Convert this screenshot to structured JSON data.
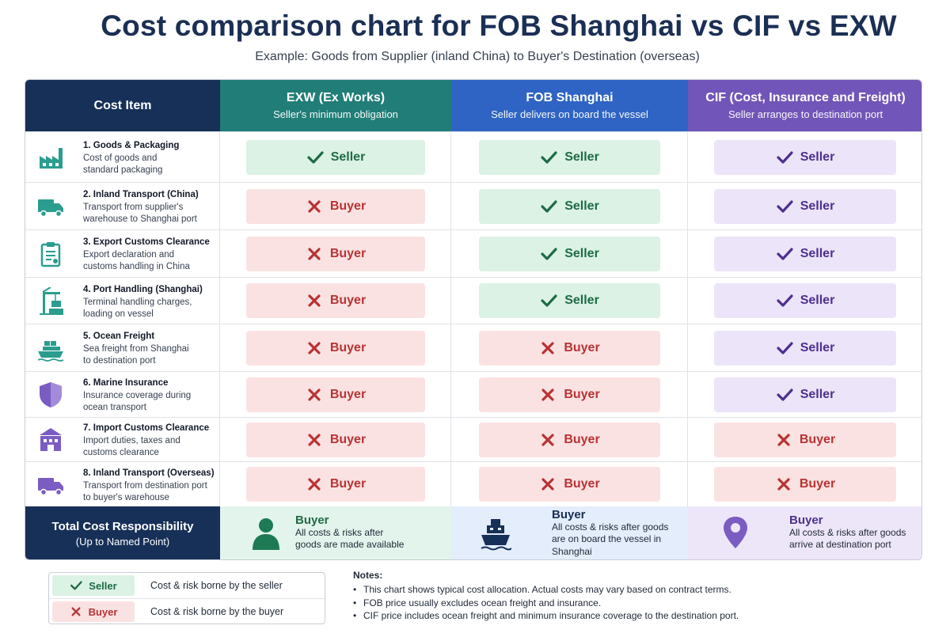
{
  "title": "Cost comparison chart for FOB Shanghai vs CIF vs EXW",
  "subtitle": "Example: Goods from Supplier (inland China) to Buyer's Destination (overseas)",
  "chart_data": {
    "type": "table",
    "columns": [
      {
        "key": "item",
        "label": "Cost Item"
      },
      {
        "key": "exw",
        "label": "EXW (Ex Works)",
        "sub": "Seller's minimum obligation",
        "color": "#217d77"
      },
      {
        "key": "fob",
        "label": "FOB Shanghai",
        "sub": "Seller delivers on board the vessel",
        "color": "#2f64c4"
      },
      {
        "key": "cif",
        "label": "CIF (Cost, Insurance and Freight)",
        "sub": "Seller arranges to destination port",
        "color": "#7255b8"
      }
    ],
    "rows": [
      {
        "name": "1. Goods & Packaging",
        "desc1": "Cost of goods and",
        "desc2": "standard packaging",
        "icon": "factory-icon",
        "icon_color": "#2a9d8f",
        "exw": "Seller",
        "fob": "Seller",
        "cif": "Seller"
      },
      {
        "name": "2. Inland Transport (China)",
        "desc1": "Transport from supplier's",
        "desc2": "warehouse to Shanghai port",
        "icon": "truck-icon",
        "icon_color": "#2a9d8f",
        "exw": "Buyer",
        "fob": "Seller",
        "cif": "Seller"
      },
      {
        "name": "3. Export Customs Clearance",
        "desc1": "Export declaration and",
        "desc2": "customs handling in China",
        "icon": "clipboard-icon",
        "icon_color": "#2a9d8f",
        "exw": "Buyer",
        "fob": "Seller",
        "cif": "Seller"
      },
      {
        "name": "4. Port Handling (Shanghai)",
        "desc1": "Terminal handling charges,",
        "desc2": "loading on vessel",
        "icon": "port-crane-icon",
        "icon_color": "#2a9d8f",
        "exw": "Buyer",
        "fob": "Seller",
        "cif": "Seller"
      },
      {
        "name": "5. Ocean Freight",
        "desc1": "Sea freight from Shanghai",
        "desc2": "to destination port",
        "icon": "cargo-ship-icon",
        "icon_color": "#2a9d8f",
        "exw": "Buyer",
        "fob": "Buyer",
        "cif": "Seller"
      },
      {
        "name": "6. Marine Insurance",
        "desc1": "Insurance coverage during",
        "desc2": "ocean transport",
        "icon": "shield-icon",
        "icon_color": "#7b5cc2",
        "exw": "Buyer",
        "fob": "Buyer",
        "cif": "Seller"
      },
      {
        "name": "7. Import Customs Clearance",
        "desc1": "Import duties, taxes and",
        "desc2": "customs clearance",
        "icon": "customs-building-icon",
        "icon_color": "#7b5cc2",
        "exw": "Buyer",
        "fob": "Buyer",
        "cif": "Buyer"
      },
      {
        "name": "8. Inland Transport (Overseas)",
        "desc1": "Transport from destination port",
        "desc2": "to buyer's warehouse",
        "icon": "truck-icon",
        "icon_color": "#7b5cc2",
        "exw": "Buyer",
        "fob": "Buyer",
        "cif": "Buyer"
      }
    ],
    "total": {
      "label1": "Total Cost Responsibility",
      "label2": "(Up to Named Point)",
      "exw": {
        "who": "Buyer",
        "lines": [
          "All costs & risks after",
          "goods are made available"
        ],
        "icon": "person-icon"
      },
      "fob": {
        "who": "Buyer",
        "lines": [
          "All costs & risks after goods",
          "are on board the vessel in",
          "Shanghai"
        ],
        "icon": "cargo-ship-icon"
      },
      "cif": {
        "who": "Buyer",
        "lines": [
          "All costs & risks after goods",
          "arrive at destination port"
        ],
        "icon": "location-pin-icon"
      }
    }
  },
  "legend": {
    "seller_label": "Seller",
    "seller_desc": "Cost & risk borne by the seller",
    "buyer_label": "Buyer",
    "buyer_desc": "Cost & risk borne by the buyer"
  },
  "notes": {
    "title": "Notes:",
    "items": [
      "This chart shows typical cost allocation. Actual costs may vary based on contract terms.",
      "FOB price usually excludes ocean freight and insurance.",
      "CIF price includes ocean freight and minimum insurance coverage to the destination port."
    ]
  },
  "colors": {
    "seller_green": "#1e6b44",
    "seller_purple": "#4e2f8f",
    "buyer_red": "#b83333"
  }
}
